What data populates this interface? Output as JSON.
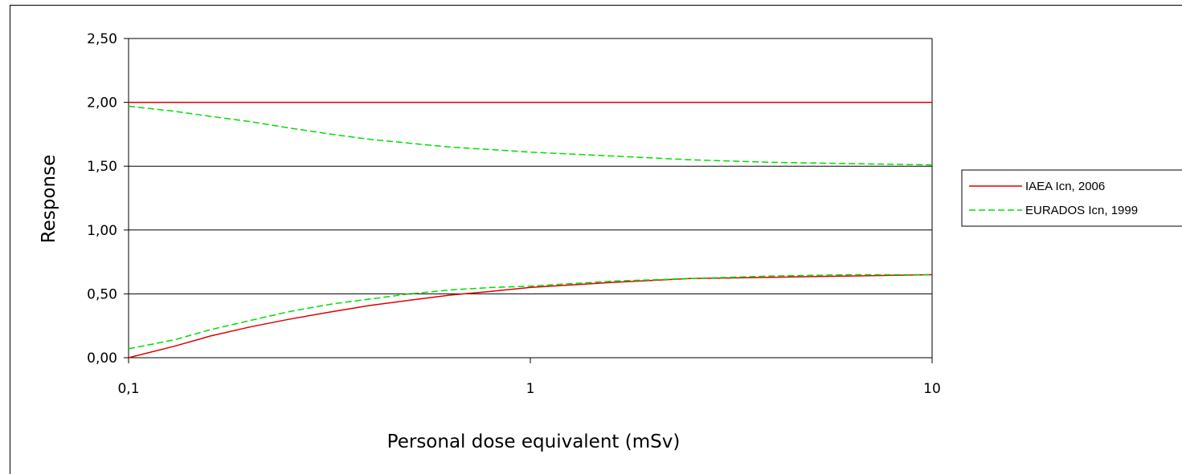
{
  "chart_data": {
    "type": "line",
    "title": "",
    "xlabel": "Personal dose equivalent (mSv)",
    "ylabel": "Response",
    "x_scale": "log",
    "xlim": [
      0.1,
      10
    ],
    "ylim": [
      0,
      2.5
    ],
    "x_ticks": [
      "0,1",
      "1",
      "10"
    ],
    "y_ticks": [
      "0,00",
      "0,50",
      "1,00",
      "1,50",
      "2,00",
      "2,50"
    ],
    "grid": "horizontal",
    "legend_position": "right",
    "series": [
      {
        "name": "IAEA Icn, 2006",
        "color": "#e00000",
        "style": "solid",
        "lines": [
          {
            "x": [
              0.1,
              10
            ],
            "y": [
              2.0,
              2.0
            ]
          },
          {
            "x": [
              0.1,
              0.13,
              0.16,
              0.2,
              0.25,
              0.32,
              0.4,
              0.5,
              0.63,
              0.8,
              1,
              1.6,
              2.5,
              4,
              6.3,
              10
            ],
            "y": [
              0.0,
              0.09,
              0.17,
              0.24,
              0.3,
              0.36,
              0.41,
              0.45,
              0.49,
              0.52,
              0.55,
              0.59,
              0.62,
              0.63,
              0.64,
              0.65
            ]
          }
        ]
      },
      {
        "name": "EURADOS Icn, 1999",
        "color": "#00dd00",
        "style": "dashed",
        "lines": [
          {
            "x": [
              0.1,
              0.13,
              0.16,
              0.2,
              0.25,
              0.32,
              0.4,
              0.5,
              0.63,
              0.8,
              1,
              1.6,
              2.5,
              4,
              6.3,
              10
            ],
            "y": [
              1.97,
              1.93,
              1.89,
              1.85,
              1.8,
              1.75,
              1.71,
              1.68,
              1.65,
              1.63,
              1.61,
              1.58,
              1.55,
              1.53,
              1.52,
              1.51
            ]
          },
          {
            "x": [
              0.1,
              0.13,
              0.16,
              0.2,
              0.25,
              0.32,
              0.4,
              0.5,
              0.63,
              0.8,
              1,
              1.6,
              2.5,
              4,
              6.3,
              10
            ],
            "y": [
              0.07,
              0.14,
              0.22,
              0.29,
              0.36,
              0.42,
              0.46,
              0.5,
              0.53,
              0.55,
              0.56,
              0.6,
              0.62,
              0.64,
              0.65,
              0.65
            ]
          }
        ]
      }
    ]
  }
}
